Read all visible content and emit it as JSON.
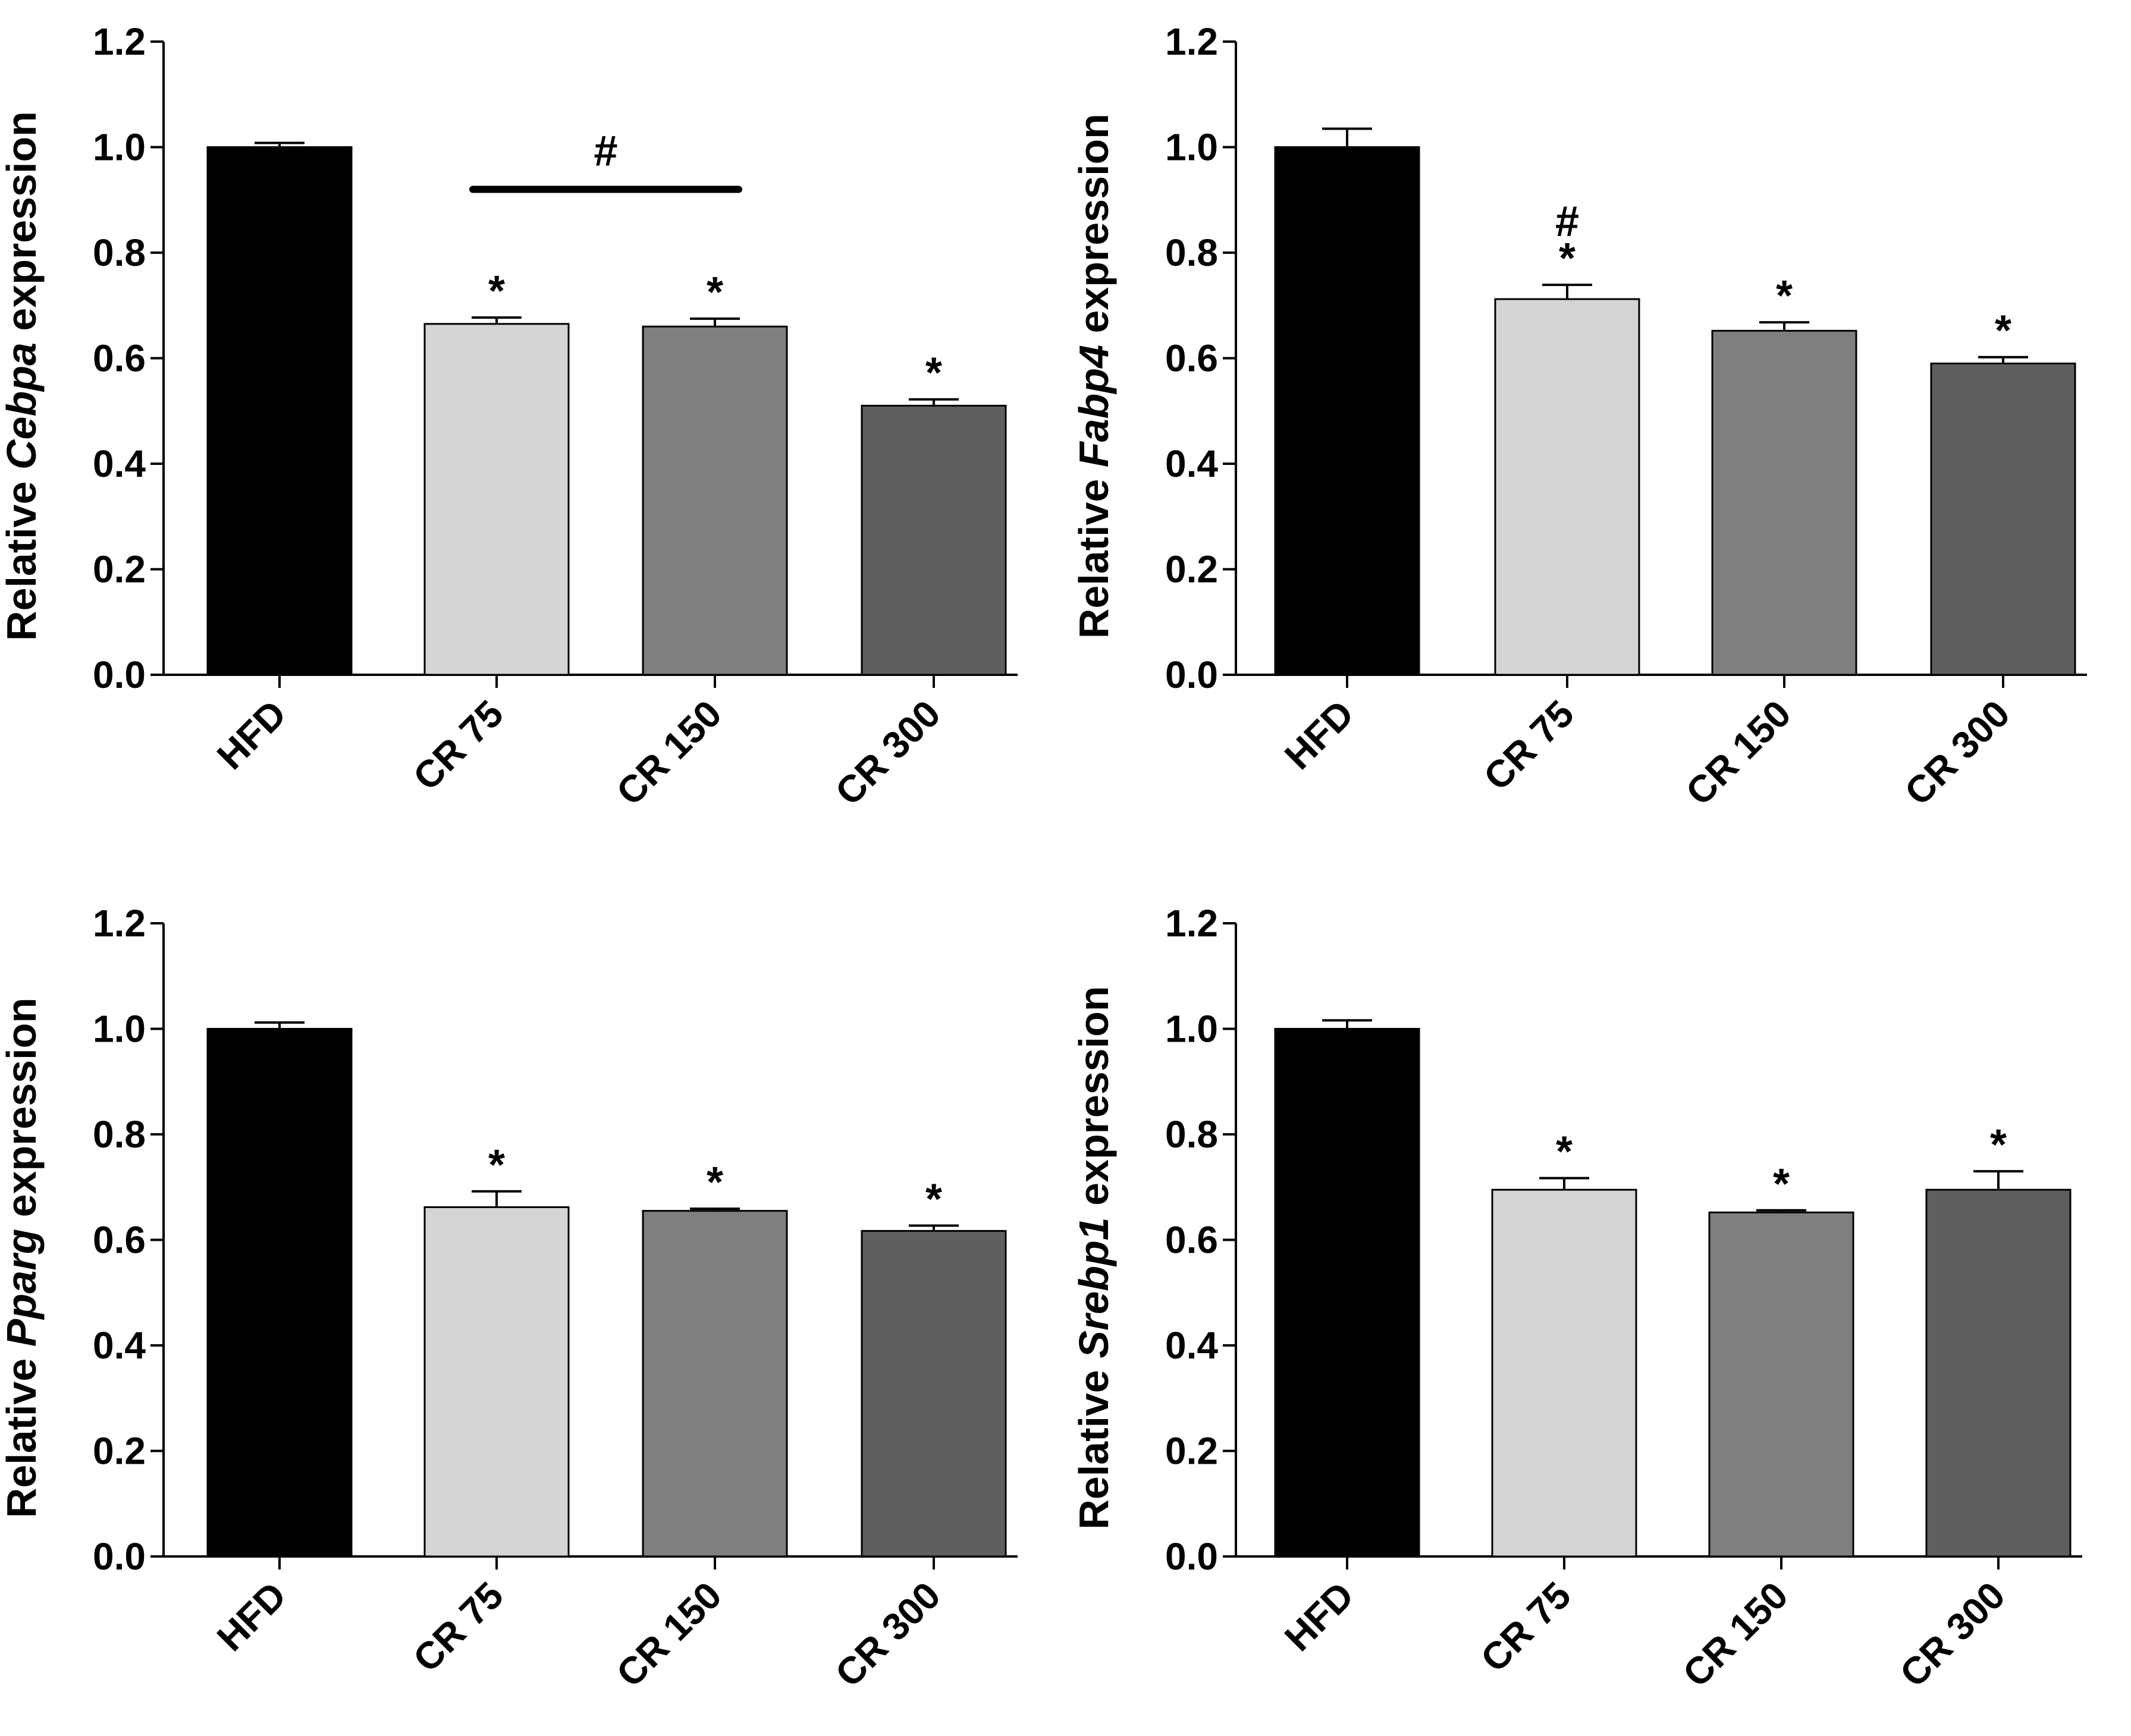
{
  "chart_data": [
    {
      "type": "bar",
      "panel": "top-left",
      "categories": [
        "HFD",
        "CR 75",
        "CR 150",
        "CR 300"
      ],
      "values": [
        1.0,
        0.665,
        0.66,
        0.51
      ],
      "errors": [
        0.008,
        0.012,
        0.015,
        0.012
      ],
      "colors": [
        "#000000",
        "#d4d4d4",
        "#7f7f7f",
        "#5f5f5f"
      ],
      "annotations": [
        "",
        "*",
        "*",
        "*"
      ],
      "bracket": {
        "from": 1,
        "to": 2,
        "y": 0.92,
        "label": "#"
      },
      "ylabel_prefix": "Relative ",
      "ylabel_gene": "Cebpa",
      "ylabel_suffix": " expression",
      "yticks": [
        "0.0",
        "0.2",
        "0.4",
        "0.6",
        "0.8",
        "1.0",
        "1.2"
      ],
      "ylim": [
        0,
        1.2
      ]
    },
    {
      "type": "bar",
      "panel": "top-right",
      "categories": [
        "HFD",
        "CR 75",
        "CR 150",
        "CR 300"
      ],
      "values": [
        1.0,
        0.712,
        0.652,
        0.59
      ],
      "errors": [
        0.035,
        0.027,
        0.016,
        0.012
      ],
      "colors": [
        "#000000",
        "#d4d4d4",
        "#7f7f7f",
        "#5f5f5f"
      ],
      "annotations": [
        "",
        "*",
        "*",
        "*"
      ],
      "hash_above": [
        false,
        true,
        false,
        false
      ],
      "ylabel_prefix": "Relative ",
      "ylabel_gene": "Fabp4",
      "ylabel_suffix": " expression",
      "yticks": [
        "0.0",
        "0.2",
        "0.4",
        "0.6",
        "0.8",
        "1.0",
        "1.2"
      ],
      "ylim": [
        0,
        1.2
      ]
    },
    {
      "type": "bar",
      "panel": "bottom-left",
      "categories": [
        "HFD",
        "CR 75",
        "CR 150",
        "CR 300"
      ],
      "values": [
        1.0,
        0.662,
        0.655,
        0.617
      ],
      "errors": [
        0.012,
        0.03,
        0.004,
        0.01
      ],
      "colors": [
        "#000000",
        "#d4d4d4",
        "#7f7f7f",
        "#5f5f5f"
      ],
      "annotations": [
        "",
        "*",
        "*",
        "*"
      ],
      "ylabel_prefix": "Relative ",
      "ylabel_gene": "Pparg",
      "ylabel_suffix": " expression",
      "yticks": [
        "0.0",
        "0.2",
        "0.4",
        "0.6",
        "0.8",
        "1.0",
        "1.2"
      ],
      "ylim": [
        0,
        1.2
      ]
    },
    {
      "type": "bar",
      "panel": "bottom-right",
      "categories": [
        "HFD",
        "CR 75",
        "CR 150",
        "CR 300"
      ],
      "values": [
        1.0,
        0.695,
        0.652,
        0.695
      ],
      "errors": [
        0.016,
        0.022,
        0.004,
        0.035
      ],
      "colors": [
        "#000000",
        "#d4d4d4",
        "#7f7f7f",
        "#5f5f5f"
      ],
      "annotations": [
        "",
        "*",
        "*",
        "*"
      ],
      "ylabel_prefix": "Relative ",
      "ylabel_gene": "Srebp1",
      "ylabel_suffix": " expression",
      "yticks": [
        "0.0",
        "0.2",
        "0.4",
        "0.6",
        "0.8",
        "1.0",
        "1.2"
      ],
      "ylim": [
        0,
        1.2
      ]
    }
  ]
}
